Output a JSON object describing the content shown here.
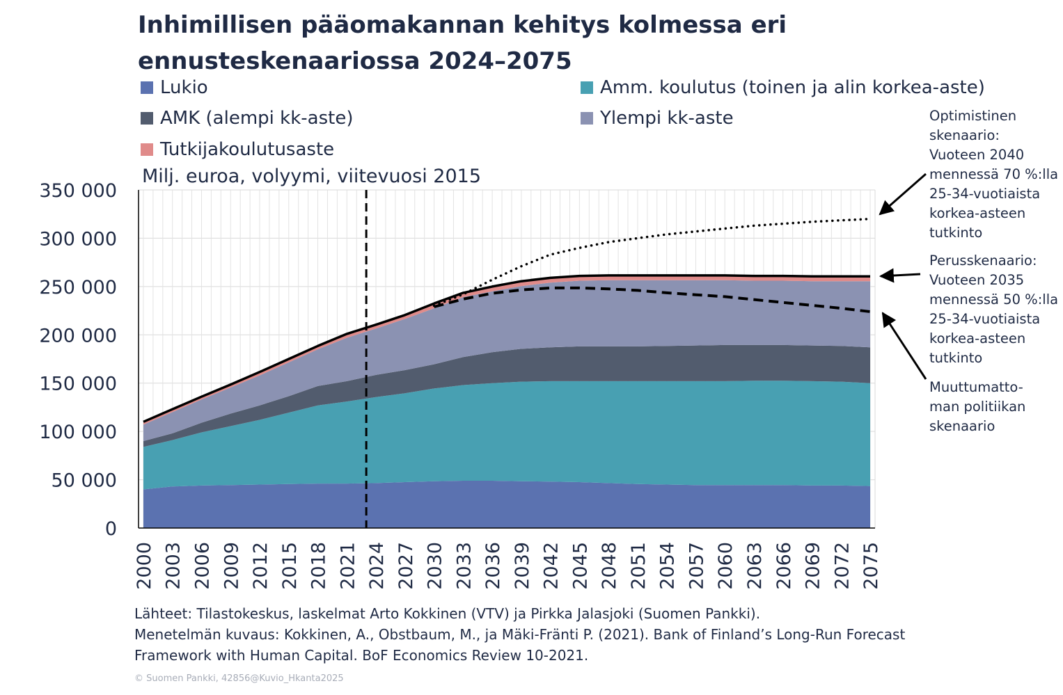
{
  "title": "Inhimillisen pääomakannan kehitys kolmessa eri ennusteskenaariossa 2024–2075",
  "unit_label": "Milj. euroa, volyymi, viitevuosi 2015",
  "legend": [
    {
      "label": "Lukio",
      "color": "#5b72b0"
    },
    {
      "label": "Amm. koulutus (toinen ja alin korkea-aste)",
      "color": "#48a0b2"
    },
    {
      "label": "AMK (alempi kk-aste)",
      "color": "#525c6e"
    },
    {
      "label": "Ylempi kk-aste",
      "color": "#8b92b2"
    },
    {
      "label": "Tutkijakoulutusaste",
      "color": "#e08b8a"
    }
  ],
  "annotations": {
    "optimistic": "Optimistinen\nskenaario:\nVuoteen 2040\nmennessä 70 %:lla\n25-34-vuotiaista\nkorkea-asteen\ntutkinto",
    "base": "Perusskenaario:\nVuoteen 2035\nmennessä 50 %:lla\n25-34-vuotiaista\nkorkea-asteen\ntutkinto",
    "unchanged": "Muuttumatto-\nman politiikan\nskenaario"
  },
  "footer": {
    "line1": "Lähteet: Tilastokeskus, laskelmat Arto Kokkinen (VTV) ja Pirkka Jalasjoki (Suomen Pankki).",
    "line2": "Menetelmän kuvaus: Kokkinen, A., Obstbaum, M., ja Mäki-Fränti P. (2021). Bank of Finland’s Long-Run Forecast",
    "line3": "Framework with Human Capital. BoF Economics Review 10-2021."
  },
  "copyright": "© Suomen Pankki, 42856@Kuvio_Hkanta2025",
  "chart_data": {
    "type": "area",
    "stacked": true,
    "x": [
      2000,
      2003,
      2006,
      2009,
      2012,
      2015,
      2018,
      2021,
      2024,
      2027,
      2030,
      2033,
      2036,
      2039,
      2042,
      2045,
      2048,
      2051,
      2054,
      2057,
      2060,
      2063,
      2066,
      2069,
      2072,
      2075
    ],
    "x_tick_labels": [
      "2000",
      "2003",
      "2006",
      "2009",
      "2012",
      "2015",
      "2018",
      "2021",
      "2024",
      "2027",
      "2030",
      "2033",
      "2036",
      "2039",
      "2042",
      "2045",
      "2048",
      "2051",
      "2054",
      "2057",
      "2060",
      "2063",
      "2066",
      "2069",
      "2072",
      "2075"
    ],
    "y_tick_labels": [
      "0",
      "50 000",
      "100 000",
      "150 000",
      "200 000",
      "250 000",
      "300 000",
      "350 000"
    ],
    "ylim": [
      0,
      350000
    ],
    "y_ticks": [
      0,
      50000,
      100000,
      150000,
      200000,
      250000,
      300000,
      350000
    ],
    "grid": true,
    "forecast_start_line_x": 2023,
    "series": [
      {
        "name": "Lukio",
        "color": "#5b72b0",
        "values": [
          40000,
          43000,
          44000,
          44500,
          45000,
          45500,
          46000,
          46000,
          46500,
          47500,
          48500,
          49000,
          49000,
          48500,
          48000,
          47500,
          46500,
          45500,
          45000,
          44500,
          44500,
          44500,
          44500,
          44000,
          44000,
          43500
        ]
      },
      {
        "name": "Amm. koulutus (toinen ja alin korkea-aste)",
        "color": "#48a0b2",
        "values": [
          44000,
          48000,
          55000,
          61000,
          67000,
          74000,
          81000,
          85000,
          89000,
          92000,
          96000,
          99000,
          101000,
          103000,
          104000,
          104500,
          105500,
          106500,
          107000,
          107500,
          107500,
          108000,
          108000,
          108000,
          107500,
          106500
        ]
      },
      {
        "name": "AMK (alempi kk-aste)",
        "color": "#525c6e",
        "values": [
          6000,
          7000,
          10000,
          13000,
          15000,
          17000,
          20000,
          21000,
          23000,
          24000,
          25000,
          29000,
          32000,
          34000,
          35000,
          36000,
          36000,
          36000,
          36500,
          37000,
          37500,
          37000,
          37000,
          37000,
          37000,
          37000
        ]
      },
      {
        "name": "Ylempi kk-aste",
        "color": "#8b92b2",
        "values": [
          17000,
          22000,
          24000,
          27000,
          31000,
          35000,
          38000,
          45000,
          48000,
          53000,
          58000,
          62000,
          63000,
          65000,
          67000,
          68000,
          68500,
          68500,
          68000,
          67500,
          67000,
          66500,
          66500,
          66500,
          67000,
          68500
        ]
      },
      {
        "name": "Tutkijakoulutusaste",
        "color": "#e08b8a",
        "values": [
          3000,
          3000,
          3000,
          3000,
          3500,
          3500,
          3500,
          4000,
          4000,
          4000,
          4500,
          4500,
          5000,
          5000,
          5000,
          5000,
          5000,
          5000,
          5000,
          5000,
          5000,
          5000,
          5000,
          5000,
          5000,
          5000
        ]
      }
    ],
    "scenario_lines": [
      {
        "style": "solid",
        "x": [
          2000,
          2003,
          2006,
          2009,
          2012,
          2015,
          2018,
          2021,
          2024,
          2027,
          2030,
          2033,
          2036,
          2039,
          2042,
          2045,
          2048,
          2051,
          2054,
          2057,
          2060,
          2063,
          2066,
          2069,
          2072,
          2075
        ],
        "values": [
          110000,
          123000,
          136000,
          148500,
          161500,
          175000,
          188500,
          201000,
          210500,
          220500,
          232500,
          243500,
          250000,
          255500,
          259000,
          261000,
          261500,
          261500,
          261500,
          261500,
          261500,
          261000,
          261000,
          260500,
          260500,
          260500
        ]
      },
      {
        "style": "dotted",
        "x": [
          2030,
          2033,
          2036,
          2039,
          2042,
          2045,
          2048,
          2051,
          2054,
          2057,
          2060,
          2063,
          2066,
          2069,
          2072,
          2075
        ],
        "values": [
          230000,
          242000,
          257000,
          271000,
          283000,
          290000,
          296000,
          300000,
          304000,
          307000,
          310000,
          313000,
          315000,
          317000,
          318500,
          320000
        ]
      },
      {
        "style": "dashed",
        "x": [
          2030,
          2033,
          2036,
          2039,
          2042,
          2045,
          2048,
          2051,
          2054,
          2057,
          2060,
          2063,
          2066,
          2069,
          2072,
          2075
        ],
        "values": [
          229000,
          237000,
          243000,
          246500,
          248500,
          248500,
          247500,
          246000,
          243500,
          241500,
          239500,
          236500,
          233500,
          230500,
          227500,
          224000
        ]
      }
    ]
  }
}
